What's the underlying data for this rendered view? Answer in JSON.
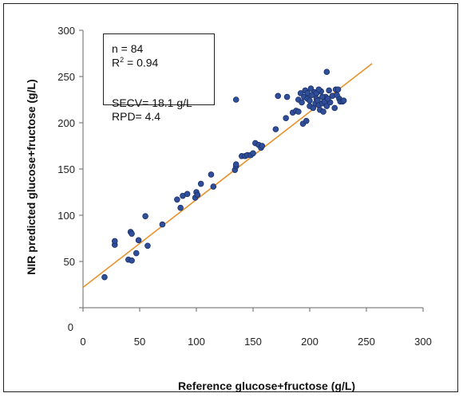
{
  "chart_data": {
    "type": "scatter",
    "title": "",
    "xlabel": "Reference glucose+fructose (g/L)",
    "ylabel": "NIR predicted glucose+fructose (g/L)",
    "xlim": [
      0,
      300
    ],
    "ylim": [
      0,
      300
    ],
    "x_ticks": [
      "0",
      "50",
      "100",
      "150",
      "200",
      "250",
      "300"
    ],
    "y_ticks": [
      "0",
      "50",
      "100",
      "150",
      "200",
      "250",
      "300"
    ],
    "grid": false,
    "marker_color": "#2f4f9b",
    "line_color": "#e8922c",
    "regression_line": {
      "x": [
        0,
        255
      ],
      "y": [
        22,
        264
      ]
    },
    "stats": {
      "n": "n = 84",
      "r2_prefix": "R",
      "r2_sup": "2",
      "r2_value": " = 0.94",
      "secv": "SECV= 18.1 g/L",
      "rpd": "RPD= 4.4"
    },
    "points": [
      {
        "x": 19,
        "y": 33
      },
      {
        "x": 28,
        "y": 68
      },
      {
        "x": 28,
        "y": 72
      },
      {
        "x": 40,
        "y": 52
      },
      {
        "x": 43,
        "y": 51
      },
      {
        "x": 42,
        "y": 82
      },
      {
        "x": 43,
        "y": 80
      },
      {
        "x": 47,
        "y": 59
      },
      {
        "x": 49,
        "y": 73
      },
      {
        "x": 55,
        "y": 99
      },
      {
        "x": 57,
        "y": 67
      },
      {
        "x": 70,
        "y": 90
      },
      {
        "x": 83,
        "y": 117
      },
      {
        "x": 86,
        "y": 108
      },
      {
        "x": 88,
        "y": 121
      },
      {
        "x": 92,
        "y": 123
      },
      {
        "x": 99,
        "y": 119
      },
      {
        "x": 100,
        "y": 125
      },
      {
        "x": 101,
        "y": 122
      },
      {
        "x": 104,
        "y": 134
      },
      {
        "x": 113,
        "y": 144
      },
      {
        "x": 115,
        "y": 131
      },
      {
        "x": 134,
        "y": 149
      },
      {
        "x": 135,
        "y": 153
      },
      {
        "x": 135,
        "y": 155
      },
      {
        "x": 135,
        "y": 225
      },
      {
        "x": 140,
        "y": 164
      },
      {
        "x": 143,
        "y": 164
      },
      {
        "x": 145,
        "y": 165
      },
      {
        "x": 148,
        "y": 165
      },
      {
        "x": 150,
        "y": 167
      },
      {
        "x": 152,
        "y": 178
      },
      {
        "x": 155,
        "y": 176
      },
      {
        "x": 157,
        "y": 173
      },
      {
        "x": 158,
        "y": 175
      },
      {
        "x": 170,
        "y": 193
      },
      {
        "x": 172,
        "y": 229
      },
      {
        "x": 179,
        "y": 205
      },
      {
        "x": 180,
        "y": 228
      },
      {
        "x": 185,
        "y": 211
      },
      {
        "x": 188,
        "y": 213
      },
      {
        "x": 190,
        "y": 212
      },
      {
        "x": 190,
        "y": 225
      },
      {
        "x": 192,
        "y": 232
      },
      {
        "x": 193,
        "y": 222
      },
      {
        "x": 194,
        "y": 199
      },
      {
        "x": 195,
        "y": 228
      },
      {
        "x": 196,
        "y": 235
      },
      {
        "x": 197,
        "y": 202
      },
      {
        "x": 198,
        "y": 226
      },
      {
        "x": 200,
        "y": 218
      },
      {
        "x": 201,
        "y": 237
      },
      {
        "x": 203,
        "y": 216
      },
      {
        "x": 204,
        "y": 233
      },
      {
        "x": 205,
        "y": 221
      },
      {
        "x": 206,
        "y": 226
      },
      {
        "x": 207,
        "y": 224
      },
      {
        "x": 208,
        "y": 219
      },
      {
        "x": 209,
        "y": 214
      },
      {
        "x": 210,
        "y": 234
      },
      {
        "x": 211,
        "y": 221
      },
      {
        "x": 212,
        "y": 212
      },
      {
        "x": 213,
        "y": 223
      },
      {
        "x": 214,
        "y": 228
      },
      {
        "x": 215,
        "y": 218
      },
      {
        "x": 215,
        "y": 255
      },
      {
        "x": 217,
        "y": 235
      },
      {
        "x": 218,
        "y": 222
      },
      {
        "x": 220,
        "y": 229
      },
      {
        "x": 222,
        "y": 216
      },
      {
        "x": 223,
        "y": 236
      },
      {
        "x": 225,
        "y": 236
      },
      {
        "x": 226,
        "y": 226
      },
      {
        "x": 227,
        "y": 223
      },
      {
        "x": 229,
        "y": 223
      },
      {
        "x": 230,
        "y": 224
      },
      {
        "x": 202,
        "y": 230
      },
      {
        "x": 198,
        "y": 232
      },
      {
        "x": 206,
        "y": 232
      },
      {
        "x": 211,
        "y": 228
      },
      {
        "x": 200,
        "y": 224
      },
      {
        "x": 216,
        "y": 226
      },
      {
        "x": 224,
        "y": 230
      },
      {
        "x": 208,
        "y": 236
      }
    ]
  }
}
